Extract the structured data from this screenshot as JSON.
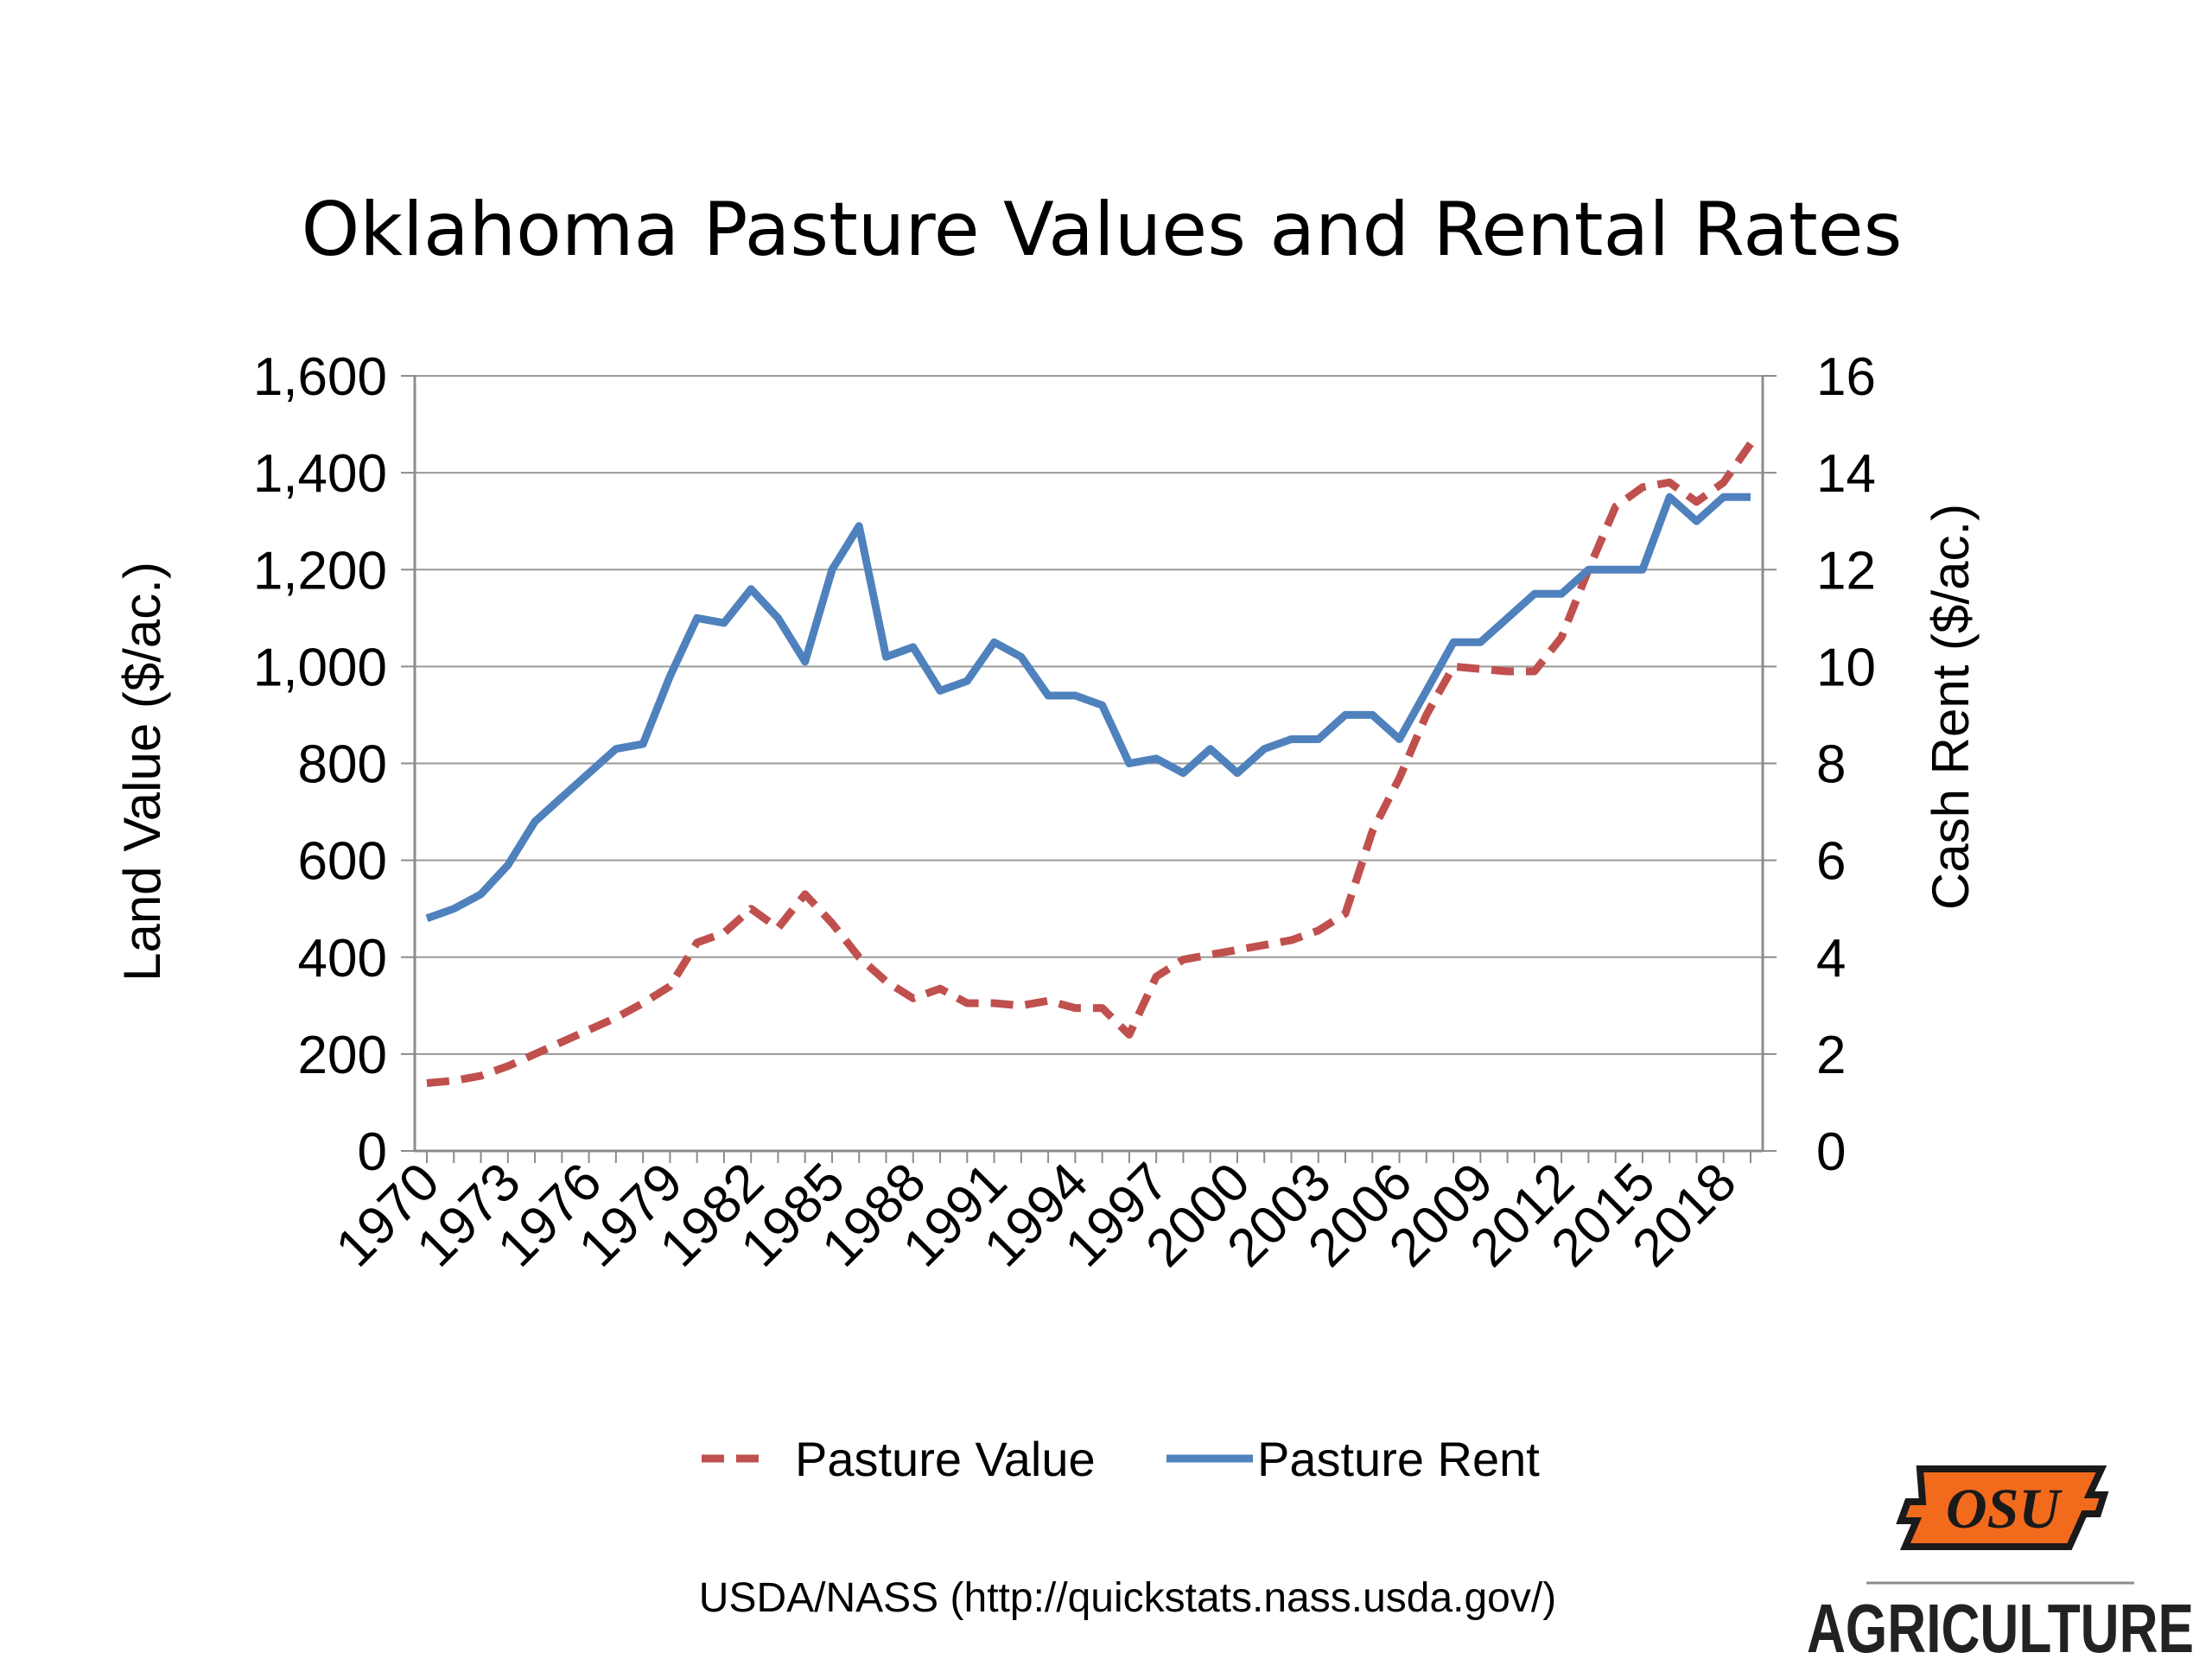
{
  "chart_data": {
    "type": "line",
    "title": "Oklahoma Pasture Values and Rental Rates",
    "ylabel": "Land Value ($/ac.)",
    "y2label": "Cash Rent ($/ac.)",
    "ylim": [
      0,
      1600
    ],
    "y2lim": [
      0,
      16
    ],
    "yticks": [
      "0",
      "200",
      "400",
      "600",
      "800",
      "1,000",
      "1,200",
      "1,400",
      "1,600"
    ],
    "y2ticks": [
      "0",
      "2",
      "4",
      "6",
      "8",
      "10",
      "12",
      "14",
      "16"
    ],
    "xticks": [
      "1970",
      "1973",
      "1976",
      "1979",
      "1982",
      "1985",
      "1988",
      "1991",
      "1994",
      "1997",
      "2000",
      "2003",
      "2006",
      "2009",
      "2012",
      "2015",
      "2018"
    ],
    "x": [
      1970,
      1971,
      1972,
      1973,
      1974,
      1975,
      1976,
      1977,
      1978,
      1979,
      1980,
      1981,
      1982,
      1983,
      1984,
      1985,
      1986,
      1987,
      1988,
      1989,
      1990,
      1991,
      1992,
      1993,
      1994,
      1995,
      1996,
      1997,
      1998,
      1999,
      2000,
      2001,
      2002,
      2003,
      2004,
      2005,
      2006,
      2007,
      2008,
      2009,
      2010,
      2011,
      2012,
      2013,
      2014,
      2015,
      2016,
      2017,
      2018,
      2019
    ],
    "grid": true,
    "legend_position": "bottom",
    "series": [
      {
        "name": "Pasture Value",
        "axis": "left",
        "style": "dashed",
        "color": "#c0504d",
        "values": [
          140,
          145,
          155,
          175,
          200,
          225,
          250,
          275,
          305,
          340,
          430,
          450,
          500,
          460,
          530,
          470,
          400,
          350,
          315,
          335,
          305,
          305,
          300,
          310,
          295,
          295,
          240,
          360,
          395,
          405,
          415,
          425,
          435,
          455,
          490,
          660,
          770,
          900,
          1000,
          995,
          990,
          990,
          1060,
          1200,
          1330,
          1370,
          1380,
          1340,
          1380,
          1460
        ]
      },
      {
        "name": "Pasture Rent",
        "axis": "right",
        "style": "solid",
        "color": "#4f81bd",
        "values": [
          4.8,
          5.0,
          5.3,
          5.9,
          6.8,
          7.3,
          7.8,
          8.3,
          8.4,
          9.8,
          11.0,
          10.9,
          11.6,
          11.0,
          10.1,
          12.0,
          12.9,
          10.2,
          10.4,
          9.5,
          9.7,
          10.5,
          10.2,
          9.4,
          9.4,
          9.2,
          8.0,
          8.1,
          7.8,
          8.3,
          7.8,
          8.3,
          8.5,
          8.5,
          9.0,
          9.0,
          8.5,
          9.5,
          10.5,
          10.5,
          11.0,
          11.5,
          11.5,
          12.0,
          12.0,
          12.0,
          13.5,
          13.0,
          13.5,
          13.5
        ]
      }
    ]
  },
  "source": "USDA/NASS (http://quickstats.nass.usda.gov/)",
  "logo": {
    "mark": "OSU",
    "wordmark": "AGRICULTURE",
    "brand_color": "#f26b1d"
  },
  "colors": {
    "grid": "#9a9a9a",
    "axis": "#8c8c8c"
  }
}
